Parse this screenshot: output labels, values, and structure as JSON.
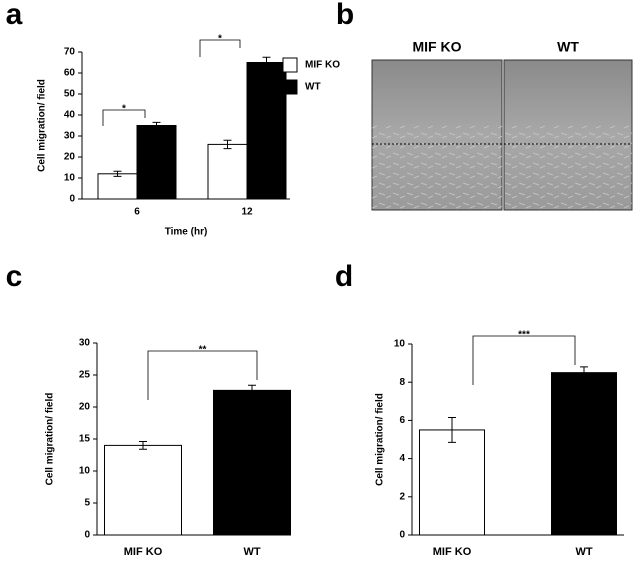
{
  "chart_data": [
    {
      "type": "grouped-bar",
      "panel": "a",
      "ylabel": "Cell migration/ field",
      "xlabel": "Time (hr)",
      "categories": [
        "6",
        "12"
      ],
      "series": [
        {
          "name": "MIF KO",
          "color": "#ffffff",
          "values": [
            12,
            26
          ],
          "errors": [
            1.2,
            2
          ]
        },
        {
          "name": "WT",
          "color": "#000000",
          "values": [
            35,
            65
          ],
          "errors": [
            1.5,
            2.5
          ]
        }
      ],
      "ylim": [
        0,
        70
      ],
      "yticks": [
        0,
        10,
        20,
        30,
        40,
        50,
        60,
        70
      ],
      "annotations": [
        "*",
        "*"
      ]
    },
    {
      "type": "image",
      "panel": "b",
      "titles": [
        "MIF KO",
        "WT"
      ]
    },
    {
      "type": "bar",
      "panel": "c",
      "ylabel": "Cell migration/ field",
      "categories": [
        "MIF KO",
        "WT"
      ],
      "values": [
        14,
        22.6
      ],
      "errors": [
        0.6,
        0.8
      ],
      "colors": [
        "#ffffff",
        "#000000"
      ],
      "ylim": [
        0,
        30
      ],
      "yticks": [
        0,
        5,
        10,
        15,
        20,
        25,
        30
      ],
      "annotations": [
        "**"
      ]
    },
    {
      "type": "bar",
      "panel": "d",
      "ylabel": "Cell migration/ field",
      "categories": [
        "MIF KO",
        "WT"
      ],
      "values": [
        5.5,
        8.5
      ],
      "errors": [
        0.65,
        0.3
      ],
      "colors": [
        "#ffffff",
        "#000000"
      ],
      "ylim": [
        0,
        10
      ],
      "yticks": [
        0,
        2,
        4,
        6,
        8,
        10
      ],
      "annotations": [
        "***"
      ]
    }
  ]
}
